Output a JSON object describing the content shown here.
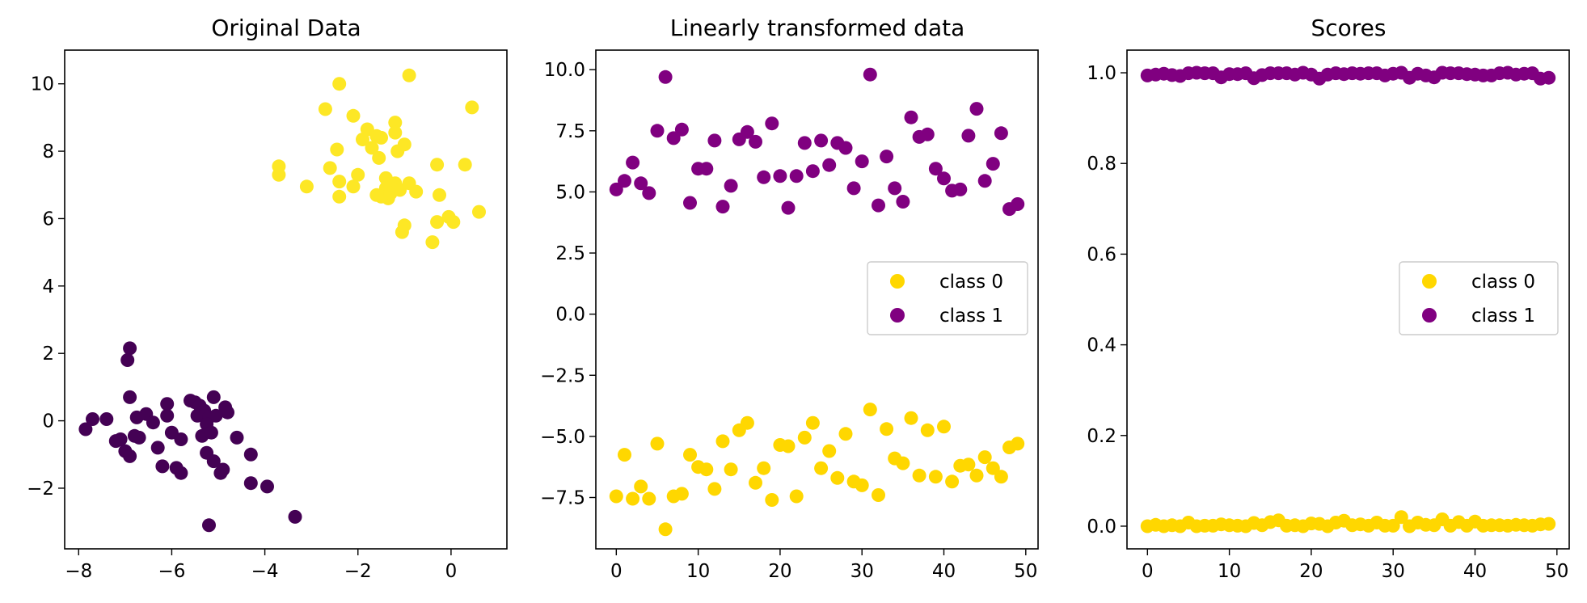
{
  "colors": {
    "class0": "#FFD700",
    "class1": "#800080",
    "viridis_low": "#440154",
    "viridis_high": "#FDE725",
    "axes": "#000000"
  },
  "chart_data": [
    {
      "type": "scatter",
      "title": "Original Data",
      "xlim": [
        -8.3,
        1.2
      ],
      "ylim": [
        -3.8,
        11.0
      ],
      "xticks": [
        -8,
        -6,
        -4,
        -2,
        0
      ],
      "yticks": [
        -2,
        0,
        2,
        4,
        6,
        8,
        10
      ],
      "legend": null,
      "series": [
        {
          "color_key": "viridis_high",
          "points": [
            [
              -2.4,
              10.0
            ],
            [
              -0.9,
              10.25
            ],
            [
              -2.7,
              9.25
            ],
            [
              0.45,
              9.3
            ],
            [
              -2.1,
              9.05
            ],
            [
              -1.2,
              8.85
            ],
            [
              -1.8,
              8.65
            ],
            [
              -1.6,
              8.45
            ],
            [
              -2.45,
              8.05
            ],
            [
              -1.9,
              8.35
            ],
            [
              -1.5,
              8.4
            ],
            [
              -1.15,
              8.0
            ],
            [
              -1.0,
              8.2
            ],
            [
              -1.7,
              8.1
            ],
            [
              -3.7,
              7.55
            ],
            [
              -3.7,
              7.3
            ],
            [
              -2.6,
              7.5
            ],
            [
              -2.4,
              7.1
            ],
            [
              -2.0,
              7.3
            ],
            [
              -2.1,
              6.95
            ],
            [
              -1.55,
              7.8
            ],
            [
              -1.4,
              7.2
            ],
            [
              -1.2,
              7.05
            ],
            [
              -1.4,
              6.9
            ],
            [
              -1.1,
              6.85
            ],
            [
              -1.6,
              6.7
            ],
            [
              -1.35,
              6.6
            ],
            [
              -0.9,
              7.05
            ],
            [
              -0.75,
              6.8
            ],
            [
              -0.3,
              7.6
            ],
            [
              -0.25,
              6.7
            ],
            [
              0.3,
              7.6
            ],
            [
              -3.1,
              6.95
            ],
            [
              -2.4,
              6.65
            ],
            [
              -1.0,
              5.8
            ],
            [
              -1.05,
              5.6
            ],
            [
              -0.3,
              5.9
            ],
            [
              -0.4,
              5.3
            ],
            [
              -0.05,
              6.05
            ],
            [
              0.05,
              5.9
            ],
            [
              0.6,
              6.2
            ],
            [
              -1.5,
              6.65
            ],
            [
              -1.2,
              8.55
            ],
            [
              -1.3,
              6.75
            ]
          ]
        },
        {
          "color_key": "viridis_low",
          "points": [
            [
              -6.9,
              2.15
            ],
            [
              -6.95,
              1.8
            ],
            [
              -6.9,
              0.7
            ],
            [
              -7.85,
              -0.25
            ],
            [
              -7.7,
              0.05
            ],
            [
              -7.4,
              0.05
            ],
            [
              -7.2,
              -0.6
            ],
            [
              -7.0,
              -0.9
            ],
            [
              -6.9,
              -1.05
            ],
            [
              -6.7,
              -0.5
            ],
            [
              -6.75,
              0.1
            ],
            [
              -6.55,
              0.2
            ],
            [
              -6.4,
              -0.05
            ],
            [
              -6.3,
              -0.8
            ],
            [
              -6.2,
              -1.35
            ],
            [
              -6.1,
              0.5
            ],
            [
              -6.1,
              0.15
            ],
            [
              -6.0,
              -0.35
            ],
            [
              -5.9,
              -1.4
            ],
            [
              -5.8,
              -1.55
            ],
            [
              -5.8,
              -0.55
            ],
            [
              -5.6,
              0.6
            ],
            [
              -5.5,
              0.55
            ],
            [
              -5.4,
              0.45
            ],
            [
              -5.3,
              0.3
            ],
            [
              -5.45,
              0.15
            ],
            [
              -5.2,
              0.1
            ],
            [
              -5.1,
              0.7
            ],
            [
              -5.05,
              0.15
            ],
            [
              -5.25,
              -0.1
            ],
            [
              -5.35,
              -0.45
            ],
            [
              -5.15,
              -0.35
            ],
            [
              -5.25,
              -0.95
            ],
            [
              -5.1,
              -1.2
            ],
            [
              -4.95,
              -1.55
            ],
            [
              -4.85,
              0.4
            ],
            [
              -4.8,
              0.25
            ],
            [
              -4.6,
              -0.5
            ],
            [
              -4.3,
              -1.0
            ],
            [
              -4.3,
              -1.85
            ],
            [
              -3.95,
              -1.95
            ],
            [
              -3.35,
              -2.85
            ],
            [
              -5.2,
              -3.1
            ],
            [
              -4.9,
              -1.45
            ],
            [
              -7.1,
              -0.55
            ],
            [
              -6.8,
              -0.45
            ]
          ]
        }
      ]
    },
    {
      "type": "scatter",
      "title": "Linearly transformed data",
      "xlim": [
        -2.5,
        51.5
      ],
      "ylim": [
        -9.6,
        10.8
      ],
      "xticks": [
        0,
        10,
        20,
        30,
        40,
        50
      ],
      "yticks": [
        -7.5,
        -5.0,
        -2.5,
        0.0,
        2.5,
        5.0,
        7.5,
        10.0
      ],
      "ytick_labels": [
        "−7.5",
        "−5.0",
        "−2.5",
        "0.0",
        "2.5",
        "5.0",
        "7.5",
        "10.0"
      ],
      "legend": "center-right",
      "series": [
        {
          "name": "class 0",
          "color_key": "class0",
          "x": [
            0,
            1,
            2,
            3,
            4,
            5,
            6,
            7,
            8,
            9,
            10,
            11,
            12,
            13,
            14,
            15,
            16,
            17,
            18,
            19,
            20,
            21,
            22,
            23,
            24,
            25,
            26,
            27,
            28,
            29,
            30,
            31,
            32,
            33,
            34,
            35,
            36,
            37,
            38,
            39,
            40,
            41,
            42,
            43,
            44,
            45,
            46,
            47,
            48,
            49
          ],
          "y": [
            -7.45,
            -5.75,
            -7.55,
            -7.05,
            -7.55,
            -5.3,
            -8.8,
            -7.45,
            -7.35,
            -5.75,
            -6.25,
            -6.35,
            -7.15,
            -5.2,
            -6.35,
            -4.75,
            -4.45,
            -6.9,
            -6.3,
            -7.6,
            -5.35,
            -5.4,
            -7.45,
            -5.05,
            -4.45,
            -6.3,
            -5.6,
            -6.7,
            -4.9,
            -6.85,
            -7.0,
            -3.9,
            -7.4,
            -4.7,
            -5.9,
            -6.1,
            -4.25,
            -6.6,
            -4.75,
            -6.65,
            -4.6,
            -6.85,
            -6.2,
            -6.15,
            -6.6,
            -5.85,
            -6.3,
            -6.65,
            -5.45,
            -5.3
          ]
        },
        {
          "name": "class 1",
          "color_key": "class1",
          "x": [
            0,
            1,
            2,
            3,
            4,
            5,
            6,
            7,
            8,
            9,
            10,
            11,
            12,
            13,
            14,
            15,
            16,
            17,
            18,
            19,
            20,
            21,
            22,
            23,
            24,
            25,
            26,
            27,
            28,
            29,
            30,
            31,
            32,
            33,
            34,
            35,
            36,
            37,
            38,
            39,
            40,
            41,
            42,
            43,
            44,
            45,
            46,
            47,
            48,
            49
          ],
          "y": [
            5.1,
            5.45,
            6.2,
            5.35,
            4.95,
            7.5,
            9.7,
            7.2,
            7.55,
            4.55,
            5.95,
            5.95,
            7.1,
            4.4,
            5.25,
            7.15,
            7.45,
            7.05,
            5.6,
            7.8,
            5.65,
            4.35,
            5.65,
            7.0,
            5.85,
            7.1,
            6.1,
            7.0,
            6.8,
            5.15,
            6.25,
            9.8,
            4.45,
            6.45,
            5.15,
            4.6,
            8.05,
            7.25,
            7.35,
            5.95,
            5.55,
            5.05,
            5.1,
            7.3,
            8.4,
            5.45,
            6.15,
            7.4,
            4.3,
            4.5
          ]
        }
      ]
    },
    {
      "type": "scatter",
      "title": "Scores",
      "xlim": [
        -2.5,
        51.5
      ],
      "ylim": [
        -0.05,
        1.05
      ],
      "xticks": [
        0,
        10,
        20,
        30,
        40,
        50
      ],
      "yticks": [
        0.0,
        0.2,
        0.4,
        0.6,
        0.8,
        1.0
      ],
      "ytick_labels": [
        "0.0",
        "0.2",
        "0.4",
        "0.6",
        "0.8",
        "1.0"
      ],
      "legend": "center-right",
      "series": [
        {
          "name": "class 0",
          "color_key": "class0",
          "x": [
            0,
            1,
            2,
            3,
            4,
            5,
            6,
            7,
            8,
            9,
            10,
            11,
            12,
            13,
            14,
            15,
            16,
            17,
            18,
            19,
            20,
            21,
            22,
            23,
            24,
            25,
            26,
            27,
            28,
            29,
            30,
            31,
            32,
            33,
            34,
            35,
            36,
            37,
            38,
            39,
            40,
            41,
            42,
            43,
            44,
            45,
            46,
            47,
            48,
            49
          ],
          "y": [
            0.0,
            0.003,
            0.0,
            0.002,
            0.0,
            0.008,
            0.0,
            0.001,
            0.001,
            0.004,
            0.002,
            0.001,
            0.0,
            0.007,
            0.002,
            0.009,
            0.013,
            0.001,
            0.002,
            0.0,
            0.006,
            0.005,
            0.0,
            0.008,
            0.012,
            0.002,
            0.004,
            0.001,
            0.008,
            0.001,
            0.001,
            0.02,
            0.0,
            0.008,
            0.003,
            0.002,
            0.015,
            0.001,
            0.009,
            0.001,
            0.01,
            0.001,
            0.002,
            0.002,
            0.001,
            0.003,
            0.002,
            0.001,
            0.004,
            0.005
          ]
        },
        {
          "name": "class 1",
          "color_key": "class1",
          "x": [
            0,
            1,
            2,
            3,
            4,
            5,
            6,
            7,
            8,
            9,
            10,
            11,
            12,
            13,
            14,
            15,
            16,
            17,
            18,
            19,
            20,
            21,
            22,
            23,
            24,
            25,
            26,
            27,
            28,
            29,
            30,
            31,
            32,
            33,
            34,
            35,
            36,
            37,
            38,
            39,
            40,
            41,
            42,
            43,
            44,
            45,
            46,
            47,
            48,
            49
          ],
          "y": [
            0.994,
            0.996,
            0.998,
            0.995,
            0.993,
            0.999,
            1.0,
            0.999,
            0.999,
            0.99,
            0.997,
            0.997,
            0.999,
            0.988,
            0.995,
            0.999,
            0.999,
            0.999,
            0.996,
            1.0,
            0.996,
            0.987,
            0.996,
            0.999,
            0.997,
            0.999,
            0.998,
            0.999,
            0.999,
            0.994,
            0.998,
            1.0,
            0.989,
            0.998,
            0.994,
            0.99,
            1.0,
            0.999,
            0.999,
            0.997,
            0.996,
            0.994,
            0.994,
            0.999,
            1.0,
            0.996,
            0.998,
            0.999,
            0.987,
            0.989
          ]
        }
      ]
    }
  ]
}
